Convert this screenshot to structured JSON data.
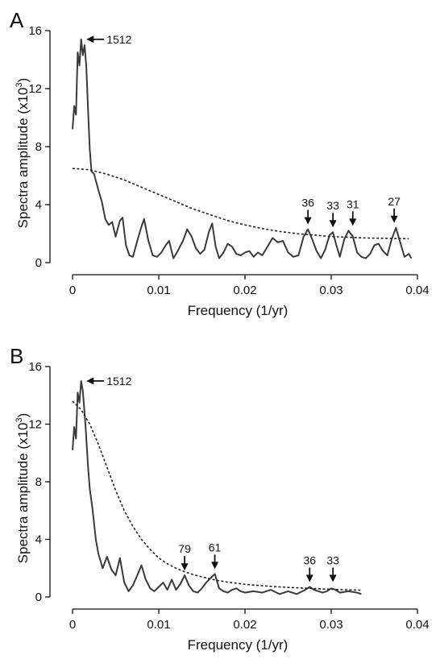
{
  "chart_data": [
    {
      "panel": "A",
      "type": "line",
      "xlabel": "Frequency (1/yr)",
      "ylabel": "Spectra amplitude (x10³)",
      "ylabel_parts": {
        "main": "Spectra amplitude (x10",
        "sup": "3",
        "end": ")"
      },
      "xlim": [
        0,
        0.04
      ],
      "ylim": [
        0,
        16
      ],
      "xticks": [
        0,
        0.01,
        0.02,
        0.03,
        0.04
      ],
      "xtick_labels": [
        "0",
        "0.01",
        "0.02",
        "0.03",
        "0.04"
      ],
      "yticks": [
        0,
        4,
        8,
        12,
        16
      ],
      "ytick_labels": [
        "0",
        "4",
        "8",
        "12",
        "16"
      ],
      "series": [
        {
          "style": "solid",
          "x": [
            0,
            0.0002,
            0.0004,
            0.0006,
            0.0008,
            0.001,
            0.0012,
            0.0014,
            0.0016,
            0.0018,
            0.002,
            0.0022,
            0.0025,
            0.003,
            0.0034,
            0.0038,
            0.0042,
            0.0046,
            0.005,
            0.0055,
            0.0058,
            0.0062,
            0.0066,
            0.007,
            0.0075,
            0.008,
            0.0083,
            0.0088,
            0.0093,
            0.0098,
            0.0103,
            0.0108,
            0.0112,
            0.0117,
            0.0122,
            0.0128,
            0.0133,
            0.0138,
            0.0143,
            0.0148,
            0.0153,
            0.0158,
            0.0162,
            0.0166,
            0.017,
            0.0175,
            0.018,
            0.0185,
            0.019,
            0.0195,
            0.02,
            0.0205,
            0.021,
            0.0215,
            0.022,
            0.0225,
            0.0232,
            0.0238,
            0.0244,
            0.025,
            0.0256,
            0.0262,
            0.0268,
            0.0273,
            0.0278,
            0.0283,
            0.0288,
            0.0293,
            0.0298,
            0.0302,
            0.0306,
            0.031,
            0.0315,
            0.032,
            0.0325,
            0.033,
            0.0335,
            0.034,
            0.0345,
            0.035,
            0.0355,
            0.036,
            0.0365,
            0.037,
            0.0375,
            0.038,
            0.0385,
            0.039,
            0.0393
          ],
          "y": [
            9.2,
            10.8,
            10.2,
            14.5,
            13.6,
            15.4,
            14.3,
            15.0,
            13.5,
            10.5,
            7.8,
            6.3,
            6.1,
            5.0,
            4.2,
            3.0,
            2.6,
            2.8,
            1.8,
            2.9,
            3.1,
            1.2,
            0.5,
            0.4,
            1.5,
            2.5,
            3.0,
            1.5,
            0.5,
            0.4,
            0.7,
            1.2,
            1.5,
            0.3,
            0.8,
            1.5,
            2.3,
            1.8,
            1.0,
            0.6,
            0.9,
            2.1,
            2.7,
            1.1,
            0.3,
            0.7,
            1.3,
            1.1,
            0.6,
            0.5,
            0.7,
            0.8,
            0.4,
            0.7,
            0.5,
            1.0,
            1.7,
            1.4,
            1.5,
            0.7,
            0.4,
            0.5,
            1.8,
            2.3,
            1.6,
            0.8,
            0.3,
            0.9,
            1.9,
            2.1,
            1.2,
            0.4,
            1.6,
            2.2,
            1.8,
            0.7,
            0.4,
            0.3,
            0.6,
            1.2,
            1.3,
            0.8,
            0.5,
            1.6,
            2.4,
            1.4,
            0.4,
            0.6,
            0.3
          ]
        },
        {
          "style": "dashed",
          "x": [
            0,
            0.002,
            0.004,
            0.006,
            0.008,
            0.01,
            0.012,
            0.014,
            0.016,
            0.018,
            0.02,
            0.022,
            0.024,
            0.026,
            0.028,
            0.03,
            0.032,
            0.034,
            0.036,
            0.038,
            0.039
          ],
          "y": [
            6.5,
            6.4,
            6.1,
            5.7,
            5.2,
            4.7,
            4.2,
            3.7,
            3.3,
            2.9,
            2.6,
            2.35,
            2.15,
            2.0,
            1.9,
            1.8,
            1.75,
            1.7,
            1.68,
            1.66,
            1.65
          ]
        }
      ],
      "annotations": [
        {
          "label": "1512",
          "x": 0.00105,
          "y": 15.4,
          "arrow": "left"
        },
        {
          "label": "36",
          "x": 0.0273,
          "y": 2.3,
          "arrow": "down"
        },
        {
          "label": "33",
          "x": 0.0302,
          "y": 2.1,
          "arrow": "down"
        },
        {
          "label": "31",
          "x": 0.0325,
          "y": 2.2,
          "arrow": "down"
        },
        {
          "label": "27",
          "x": 0.0373,
          "y": 2.4,
          "arrow": "down"
        }
      ]
    },
    {
      "panel": "B",
      "type": "line",
      "xlabel": "Frequency (1/yr)",
      "ylabel": "Spectra amplitude (x10³)",
      "ylabel_parts": {
        "main": "Spectra amplitude (x10",
        "sup": "3",
        "end": ")"
      },
      "xlim": [
        0,
        0.04
      ],
      "ylim": [
        0,
        16
      ],
      "xticks": [
        0,
        0.01,
        0.02,
        0.03,
        0.04
      ],
      "xtick_labels": [
        "0",
        "0.01",
        "0.02",
        "0.03",
        "0.04"
      ],
      "yticks": [
        0,
        4,
        8,
        12,
        16
      ],
      "ytick_labels": [
        "0",
        "4",
        "8",
        "12",
        "16"
      ],
      "series": [
        {
          "style": "solid",
          "x": [
            0,
            0.0002,
            0.0004,
            0.0006,
            0.0008,
            0.001,
            0.0012,
            0.0015,
            0.0018,
            0.002,
            0.0023,
            0.0027,
            0.003,
            0.0035,
            0.004,
            0.0045,
            0.005,
            0.0055,
            0.006,
            0.0065,
            0.007,
            0.0075,
            0.008,
            0.0085,
            0.009,
            0.0095,
            0.01,
            0.0105,
            0.011,
            0.0115,
            0.012,
            0.0125,
            0.013,
            0.0135,
            0.014,
            0.0145,
            0.015,
            0.0155,
            0.016,
            0.0165,
            0.017,
            0.0175,
            0.018,
            0.0185,
            0.019,
            0.0195,
            0.02,
            0.021,
            0.022,
            0.023,
            0.024,
            0.025,
            0.026,
            0.027,
            0.0275,
            0.028,
            0.029,
            0.0295,
            0.03,
            0.0305,
            0.031,
            0.032,
            0.033,
            0.0335
          ],
          "y": [
            10.2,
            11.8,
            11.0,
            14.2,
            13.5,
            15.0,
            14.3,
            12.0,
            9.0,
            7.5,
            6.2,
            4.0,
            3.0,
            2.0,
            2.8,
            1.9,
            1.5,
            2.7,
            1.0,
            0.4,
            0.8,
            1.5,
            2.2,
            1.2,
            0.6,
            0.4,
            0.7,
            1.0,
            0.5,
            1.2,
            0.5,
            0.9,
            1.5,
            0.8,
            0.4,
            0.3,
            0.6,
            1.0,
            1.3,
            1.6,
            0.6,
            0.4,
            0.3,
            0.5,
            0.6,
            0.4,
            0.3,
            0.4,
            0.3,
            0.5,
            0.2,
            0.4,
            0.2,
            0.5,
            0.7,
            0.5,
            0.3,
            0.4,
            0.6,
            0.5,
            0.3,
            0.4,
            0.3,
            0.2
          ]
        },
        {
          "style": "dashed",
          "x": [
            0,
            0.001,
            0.002,
            0.003,
            0.004,
            0.005,
            0.006,
            0.007,
            0.008,
            0.009,
            0.01,
            0.011,
            0.012,
            0.013,
            0.014,
            0.015,
            0.016,
            0.017,
            0.018,
            0.019,
            0.02,
            0.022,
            0.024,
            0.026,
            0.028,
            0.03,
            0.032,
            0.0335
          ],
          "y": [
            13.6,
            13.0,
            12.0,
            10.6,
            9.0,
            7.4,
            6.0,
            4.9,
            4.0,
            3.3,
            2.7,
            2.3,
            2.0,
            1.75,
            1.55,
            1.4,
            1.25,
            1.13,
            1.03,
            0.95,
            0.88,
            0.78,
            0.7,
            0.64,
            0.58,
            0.53,
            0.49,
            0.47
          ]
        }
      ],
      "annotations": [
        {
          "label": "1512",
          "x": 0.00105,
          "y": 15.0,
          "arrow": "left"
        },
        {
          "label": "79",
          "x": 0.013,
          "y": 1.5,
          "arrow": "down"
        },
        {
          "label": "61",
          "x": 0.0165,
          "y": 1.6,
          "arrow": "down"
        },
        {
          "label": "36",
          "x": 0.0275,
          "y": 0.7,
          "arrow": "down"
        },
        {
          "label": "33",
          "x": 0.0302,
          "y": 0.7,
          "arrow": "down"
        }
      ]
    }
  ]
}
